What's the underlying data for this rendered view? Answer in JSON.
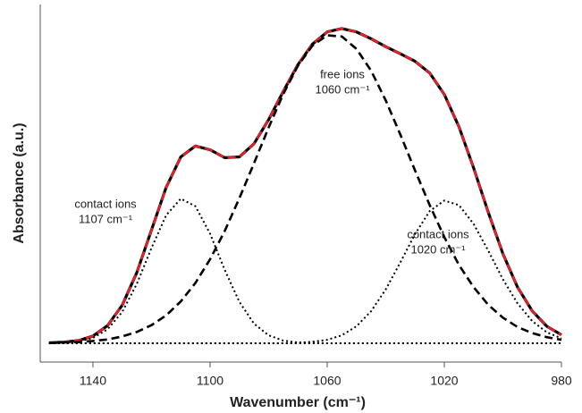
{
  "chart_data": {
    "type": "line",
    "xlabel": "Wavenumber (cm⁻¹)",
    "ylabel": "Absorbance (a.u.)",
    "annotations": [
      [
        "contact ions",
        "1107 cm⁻¹"
      ],
      [
        "free ions",
        "1060 cm⁻¹"
      ],
      [
        "contact ions",
        "1020 cm⁻¹"
      ]
    ],
    "x": [
      1155,
      1150,
      1145,
      1140,
      1135,
      1130,
      1125,
      1120,
      1115,
      1110,
      1105,
      1100,
      1095,
      1090,
      1085,
      1080,
      1075,
      1070,
      1065,
      1060,
      1055,
      1050,
      1045,
      1040,
      1035,
      1030,
      1025,
      1020,
      1015,
      1010,
      1005,
      1000,
      995,
      990,
      985,
      980
    ],
    "xlim": [
      1158,
      980
    ],
    "xticks": [
      1140,
      1100,
      1060,
      1020,
      980
    ],
    "ylim": [
      0,
      95
    ],
    "series": [
      {
        "color": "#000000",
        "dash": "solid",
        "values": [
          5.1,
          5.3,
          5.7,
          6.9,
          9.7,
          15.1,
          23.8,
          35.1,
          46.4,
          54.5,
          57.4,
          56.4,
          54.3,
          54.5,
          58.0,
          64.4,
          71.9,
          79.0,
          84.5,
          87.7,
          88.6,
          87.7,
          85.9,
          83.8,
          81.9,
          79.9,
          76.8,
          71.1,
          62.5,
          51.6,
          39.8,
          28.8,
          19.9,
          13.6,
          9.5,
          7.2
        ]
      },
      {
        "color": "#e8202a",
        "dash": "dashed",
        "values": [
          5.1,
          5.3,
          5.7,
          6.9,
          9.7,
          15.1,
          23.8,
          35.1,
          46.4,
          54.5,
          57.4,
          56.4,
          54.3,
          54.5,
          58.0,
          64.4,
          71.9,
          79.0,
          84.5,
          87.7,
          88.6,
          87.7,
          85.9,
          83.8,
          81.9,
          79.9,
          76.8,
          71.1,
          62.5,
          51.6,
          39.8,
          28.8,
          19.9,
          13.6,
          9.5,
          7.2
        ]
      },
      {
        "color": "#000000",
        "dash": "dashed",
        "values": [
          5.1,
          5.2,
          5.3,
          5.6,
          6.0,
          6.8,
          8.0,
          9.8,
          12.4,
          16.1,
          21.0,
          27.3,
          34.8,
          43.5,
          52.8,
          62.3,
          71.2,
          78.7,
          84.1,
          86.8,
          86.5,
          83.2,
          77.4,
          69.5,
          60.4,
          50.9,
          41.7,
          33.2,
          25.8,
          19.9,
          15.2,
          11.8,
          9.3,
          7.7,
          6.6,
          5.9
        ]
      },
      {
        "color": "#000000",
        "dash": "dotted",
        "values": [
          5.0,
          5.1,
          5.4,
          6.4,
          8.7,
          13.3,
          20.8,
          30.3,
          39.0,
          43.4,
          41.4,
          34.1,
          24.5,
          16.0,
          10.2,
          7.1,
          5.7,
          5.2,
          5.1,
          5.0,
          5.0,
          5.0,
          5.0,
          5.0,
          5.0,
          5.0,
          5.0,
          5.0,
          5.0,
          5.0,
          5.0,
          5.0,
          5.0,
          5.0,
          5.0,
          5.0
        ]
      },
      {
        "color": "#000000",
        "dash": "dotted",
        "values": [
          5.0,
          5.0,
          5.0,
          5.0,
          5.0,
          5.0,
          5.0,
          5.0,
          5.0,
          5.0,
          5.0,
          5.0,
          5.0,
          5.0,
          5.0,
          5.0,
          5.0,
          5.1,
          5.4,
          5.9,
          7.1,
          9.5,
          13.5,
          19.3,
          26.5,
          34.0,
          40.1,
          42.9,
          41.7,
          36.7,
          29.6,
          22.0,
          15.6,
          10.9,
          7.9,
          6.3
        ]
      },
      {
        "color": "#000000",
        "dash": "dotted",
        "values": [
          5,
          5,
          5,
          5,
          5,
          5,
          5,
          5,
          5,
          5,
          5,
          5,
          5,
          5,
          5,
          5,
          5,
          5,
          5,
          5,
          5,
          5,
          5,
          5,
          5,
          5,
          5,
          5,
          5,
          5,
          5,
          5,
          5,
          5,
          5,
          5
        ]
      }
    ]
  }
}
